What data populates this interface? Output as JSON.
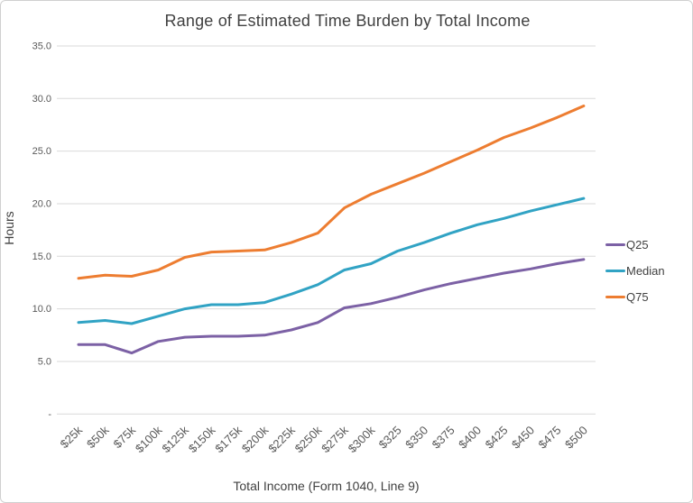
{
  "chart_data": {
    "type": "line",
    "title": "Range of Estimated Time Burden by Total Income",
    "xlabel": "Total Income (Form 1040, Line 9)",
    "ylabel": "Hours",
    "categories": [
      "$25k",
      "$50k",
      "$75k",
      "$100k",
      "$125k",
      "$150k",
      "$175k",
      "$200k",
      "$225k",
      "$250k",
      "$275k",
      "$300k",
      "$325",
      "$350",
      "$375",
      "$400",
      "$425",
      "$450",
      "$475",
      "$500"
    ],
    "series": [
      {
        "name": "Q25",
        "color": "#7C61A5",
        "values": [
          6.6,
          6.6,
          5.8,
          6.9,
          7.3,
          7.4,
          7.4,
          7.5,
          8.0,
          8.7,
          10.1,
          10.5,
          11.1,
          11.8,
          12.4,
          12.9,
          13.4,
          13.8,
          14.3,
          14.7
        ]
      },
      {
        "name": "Median",
        "color": "#31A3C4",
        "values": [
          8.7,
          8.9,
          8.6,
          9.3,
          10.0,
          10.4,
          10.4,
          10.6,
          11.4,
          12.3,
          13.7,
          14.3,
          15.5,
          16.3,
          17.2,
          18.0,
          18.6,
          19.3,
          19.9,
          20.5
        ]
      },
      {
        "name": "Q75",
        "color": "#ED7D31",
        "values": [
          12.9,
          13.2,
          13.1,
          13.7,
          14.9,
          15.4,
          15.5,
          15.6,
          16.3,
          17.2,
          19.6,
          20.9,
          21.9,
          22.9,
          24.0,
          25.1,
          26.3,
          27.2,
          28.2,
          29.3
        ]
      }
    ],
    "ylim": [
      0,
      35
    ],
    "yticks": [
      {
        "value": 0,
        "label": "-"
      },
      {
        "value": 5,
        "label": "5.0"
      },
      {
        "value": 10,
        "label": "10.0"
      },
      {
        "value": 15,
        "label": "15.0"
      },
      {
        "value": 20,
        "label": "20.0"
      },
      {
        "value": 25,
        "label": "25.0"
      },
      {
        "value": 30,
        "label": "30.0"
      },
      {
        "value": 35,
        "label": "35.0"
      }
    ],
    "grid": true,
    "legend_position": "right",
    "grid_color": "#d9d9d9",
    "tick_label_color": "#595959"
  }
}
